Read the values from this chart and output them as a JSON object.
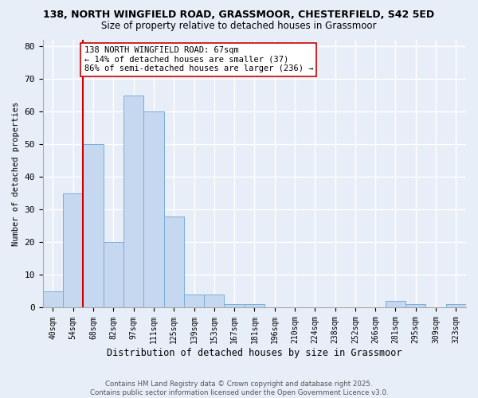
{
  "title_line1": "138, NORTH WINGFIELD ROAD, GRASSMOOR, CHESTERFIELD, S42 5ED",
  "title_line2": "Size of property relative to detached houses in Grassmoor",
  "xlabel": "Distribution of detached houses by size in Grassmoor",
  "ylabel": "Number of detached properties",
  "categories": [
    "40sqm",
    "54sqm",
    "68sqm",
    "82sqm",
    "97sqm",
    "111sqm",
    "125sqm",
    "139sqm",
    "153sqm",
    "167sqm",
    "181sqm",
    "196sqm",
    "210sqm",
    "224sqm",
    "238sqm",
    "252sqm",
    "266sqm",
    "281sqm",
    "295sqm",
    "309sqm",
    "323sqm"
  ],
  "values": [
    5,
    35,
    50,
    20,
    65,
    60,
    28,
    4,
    4,
    1,
    1,
    0,
    0,
    0,
    0,
    0,
    0,
    2,
    1,
    0,
    1
  ],
  "bar_color": "#c5d8ef",
  "bar_edge_color": "#7aaddb",
  "ylim": [
    0,
    82
  ],
  "yticks": [
    0,
    10,
    20,
    30,
    40,
    50,
    60,
    70,
    80
  ],
  "red_line_index": 2,
  "red_line_color": "#cc0000",
  "annotation_text": "138 NORTH WINGFIELD ROAD: 67sqm\n← 14% of detached houses are smaller (37)\n86% of semi-detached houses are larger (236) →",
  "annotation_box_color": "white",
  "annotation_box_edge_color": "#cc0000",
  "footer_line1": "Contains HM Land Registry data © Crown copyright and database right 2025.",
  "footer_line2": "Contains public sector information licensed under the Open Government Licence v3.0.",
  "background_color": "#e8eef8",
  "grid_color": "#ffffff"
}
